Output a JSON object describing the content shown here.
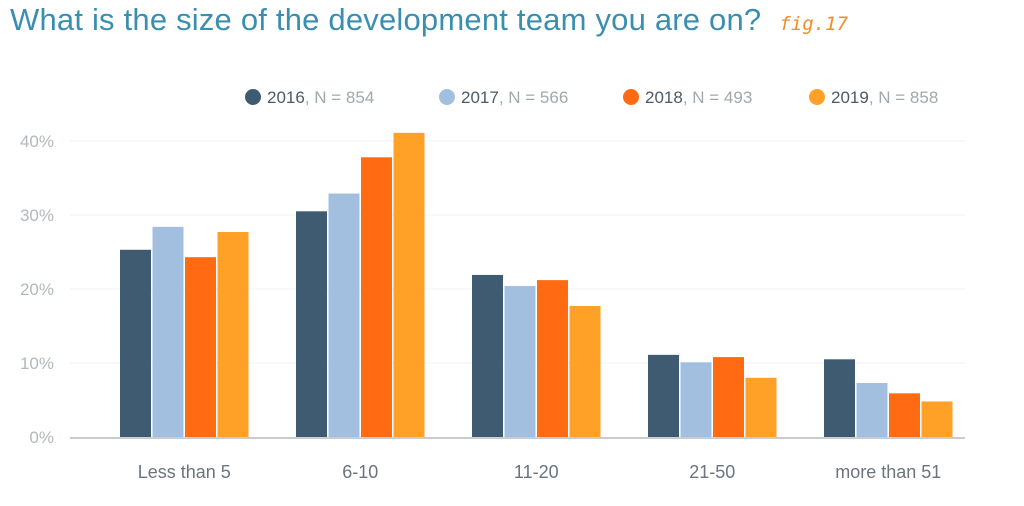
{
  "title": "What is the size of the development team you are on?",
  "figure_label": "fig.17",
  "colors": {
    "title": "#3a8fb0",
    "figure_label": "#f28c28",
    "axis": "#c6cdd3",
    "grid": "#eef1f3"
  },
  "chart_data": {
    "type": "bar",
    "title": "What is the size of the development team you are on?",
    "categories": [
      "Less than 5",
      "6-10",
      "11-20",
      "21-50",
      "more than 51"
    ],
    "series": [
      {
        "name": "2016",
        "n_label": ", N = 854",
        "color": "#3f5b72",
        "values": [
          25.3,
          30.5,
          21.9,
          11.1,
          10.5
        ]
      },
      {
        "name": "2017",
        "n_label": ", N = 566",
        "color": "#a3bfe0",
        "values": [
          28.4,
          32.9,
          20.4,
          10.1,
          7.3
        ]
      },
      {
        "name": "2018",
        "n_label": ", N = 493",
        "color": "#ff6a13",
        "values": [
          24.3,
          37.8,
          21.2,
          10.8,
          5.9
        ]
      },
      {
        "name": "2019",
        "n_label": ", N = 858",
        "color": "#ffa126",
        "values": [
          27.7,
          41.1,
          17.7,
          8.0,
          4.8
        ]
      }
    ],
    "yticks": [
      "0%",
      "10%",
      "20%",
      "30%",
      "40%"
    ],
    "ylim": [
      0,
      40
    ],
    "xlabel": "",
    "ylabel": "",
    "grid": true,
    "legend_position": "top-right"
  }
}
